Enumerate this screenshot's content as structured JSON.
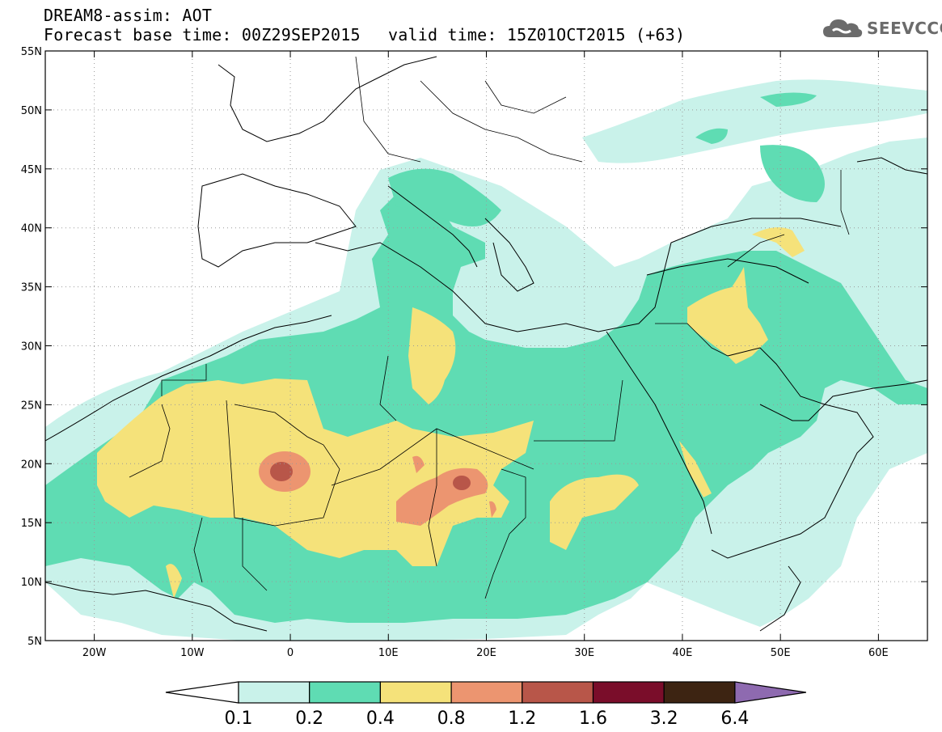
{
  "header": {
    "title_line1": "DREAM8-assim: AOT",
    "title_line2": "Forecast base time: 00Z29SEP2015",
    "title_line3": "valid time: 15Z01OCT2015 (+63)",
    "logo_text": "SEEVCCC",
    "logo_icon": "cloud-logo-icon"
  },
  "map": {
    "lon_range": [
      -25,
      65
    ],
    "lat_range": [
      5,
      55
    ],
    "lon_ticks": [
      "20W",
      "10W",
      "0",
      "10E",
      "20E",
      "30E",
      "40E",
      "50E",
      "60E"
    ],
    "lat_ticks": [
      "5N",
      "10N",
      "15N",
      "20N",
      "25N",
      "30N",
      "35N",
      "40N",
      "45N",
      "50N",
      "55N"
    ],
    "grid": "dotted",
    "variable": "AOT"
  },
  "colorbar": {
    "levels": [
      "0.1",
      "0.2",
      "0.4",
      "0.8",
      "1.2",
      "1.6",
      "3.2",
      "6.4"
    ],
    "colors": [
      "#ffffff",
      "#c9f2ea",
      "#5fdcb3",
      "#f5e27a",
      "#ec9570",
      "#b85649",
      "#7a0d2a",
      "#3d2412",
      "#8e6ab0"
    ]
  },
  "colors": {
    "c01": "#c9f2ea",
    "c02": "#5fdcb3",
    "c04": "#f5e27a",
    "c08": "#ec9570",
    "c12": "#b85649"
  }
}
